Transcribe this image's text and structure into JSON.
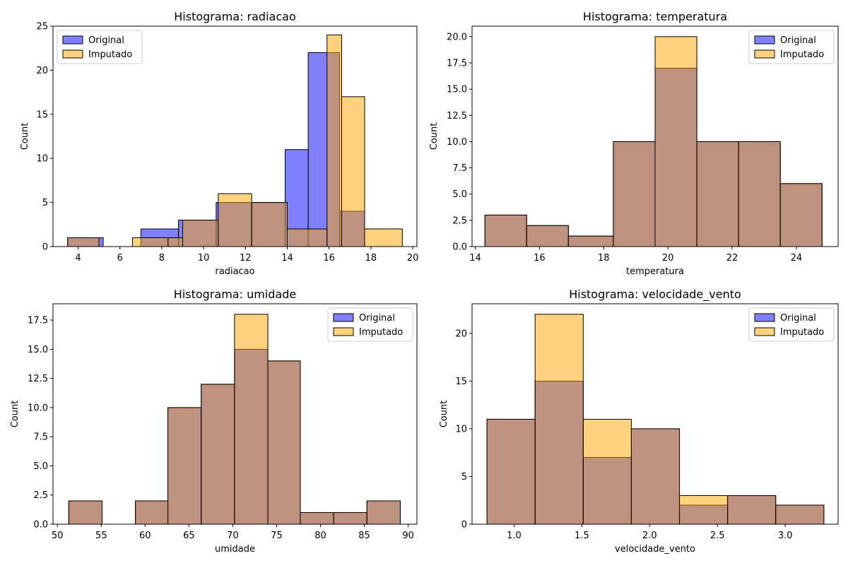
{
  "colors": {
    "original": "#0000ff",
    "imputado": "#ffa500",
    "overlap": "#bf8f7f",
    "edge": "#000000"
  },
  "legend": {
    "original": "Original",
    "imputado": "Imputado"
  },
  "chart_data": [
    {
      "type": "bar",
      "title": "Histograma: radiacao",
      "xlabel": "radiacao",
      "ylabel": "Count",
      "xlim": [
        2.8,
        20.2
      ],
      "ylim": [
        0,
        25
      ],
      "xticks": [
        "4",
        "6",
        "8",
        "10",
        "12",
        "14",
        "16",
        "18",
        "20"
      ],
      "yticks": [
        "0",
        "5",
        "10",
        "15",
        "20",
        "25"
      ],
      "legend_position": "upper left",
      "series": [
        {
          "name": "Original",
          "bins": [
            3.5,
            5.2,
            7.0,
            8.8,
            10.6,
            12.3,
            13.9,
            15.0,
            16.5,
            17.7,
            19.5
          ],
          "counts": [
            1,
            0,
            2,
            3,
            5,
            5,
            11,
            22,
            4,
            0
          ]
        },
        {
          "name": "Imputado",
          "bins": [
            3.5,
            5.0,
            6.6,
            8.3,
            9.0,
            10.7,
            12.3,
            14.0,
            15.9,
            16.6,
            17.7,
            19.5
          ],
          "counts": [
            1,
            0,
            1,
            1,
            3,
            6,
            5,
            2,
            24,
            17,
            2
          ]
        }
      ]
    },
    {
      "type": "bar",
      "title": "Histograma: temperatura",
      "xlabel": "temperatura",
      "ylabel": "Count",
      "xlim": [
        13.9,
        25.3
      ],
      "ylim": [
        0,
        21
      ],
      "xticks": [
        "14",
        "16",
        "18",
        "20",
        "22",
        "24"
      ],
      "yticks": [
        "0.0",
        "2.5",
        "5.0",
        "7.5",
        "10.0",
        "12.5",
        "15.0",
        "17.5",
        "20.0"
      ],
      "legend_position": "upper right",
      "series": [
        {
          "name": "Original",
          "bins": [
            14.3,
            15.6,
            16.9,
            18.3,
            19.6,
            20.9,
            22.2,
            23.5,
            24.8
          ],
          "counts": [
            3,
            2,
            1,
            10,
            17,
            10,
            10,
            6
          ]
        },
        {
          "name": "Imputado",
          "bins": [
            14.3,
            15.6,
            16.9,
            18.3,
            19.6,
            20.9,
            22.2,
            23.5,
            24.8
          ],
          "counts": [
            3,
            2,
            1,
            10,
            20,
            10,
            10,
            6
          ]
        }
      ]
    },
    {
      "type": "bar",
      "title": "Histograma: umidade",
      "xlabel": "umidade",
      "ylabel": "Count",
      "xlim": [
        49.5,
        91.0
      ],
      "ylim": [
        0,
        18.9
      ],
      "xticks": [
        "50",
        "55",
        "60",
        "65",
        "70",
        "75",
        "80",
        "85",
        "90"
      ],
      "yticks": [
        "0.0",
        "2.5",
        "5.0",
        "7.5",
        "10.0",
        "12.5",
        "15.0",
        "17.5"
      ],
      "legend_position": "upper right",
      "series": [
        {
          "name": "Original",
          "bins": [
            51.3,
            55.1,
            58.9,
            62.6,
            66.4,
            70.2,
            74.0,
            77.7,
            81.5,
            85.3,
            89.1
          ],
          "counts": [
            2,
            0,
            2,
            10,
            12,
            15,
            14,
            1,
            1,
            2
          ]
        },
        {
          "name": "Imputado",
          "bins": [
            51.3,
            55.1,
            58.9,
            62.6,
            66.4,
            70.2,
            74.0,
            77.7,
            81.5,
            85.3,
            89.1
          ],
          "counts": [
            2,
            0,
            2,
            10,
            12,
            18,
            14,
            1,
            1,
            2
          ]
        }
      ]
    },
    {
      "type": "bar",
      "title": "Histograma: velocidade_vento",
      "xlabel": "velocidade_vento",
      "ylabel": "Count",
      "xlim": [
        0.69,
        3.39
      ],
      "ylim": [
        0,
        23.1
      ],
      "xticks": [
        "1.0",
        "1.5",
        "2.0",
        "2.5",
        "3.0"
      ],
      "yticks": [
        "0",
        "5",
        "10",
        "15",
        "20"
      ],
      "legend_position": "upper right",
      "series": [
        {
          "name": "Original",
          "bins": [
            0.8,
            1.155,
            1.51,
            1.865,
            2.22,
            2.575,
            2.93,
            3.285
          ],
          "counts": [
            11,
            15,
            7,
            10,
            2,
            3,
            2
          ]
        },
        {
          "name": "Imputado",
          "bins": [
            0.8,
            1.155,
            1.51,
            1.865,
            2.22,
            2.575,
            2.93,
            3.285
          ],
          "counts": [
            11,
            22,
            11,
            10,
            3,
            3,
            2
          ]
        }
      ]
    }
  ]
}
